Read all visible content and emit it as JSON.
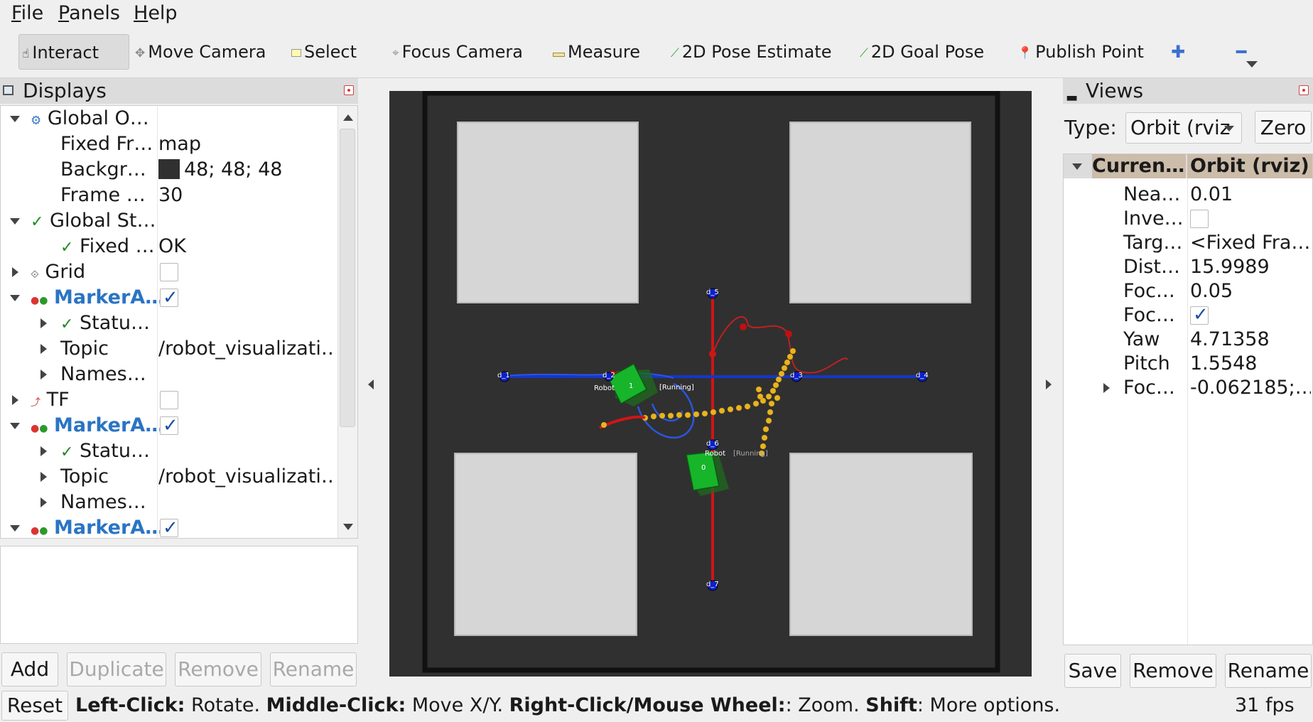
{
  "menu": {
    "file": "File",
    "file_ul": "F",
    "file_rest": "ile",
    "panels_ul": "P",
    "panels_rest": "anels",
    "help_ul": "H",
    "help_rest": "elp"
  },
  "toolbar": {
    "interact": "Interact",
    "move_camera": "Move Camera",
    "select": "Select",
    "focus_camera": "Focus Camera",
    "measure": "Measure",
    "pose_estimate": "2D Pose Estimate",
    "goal_pose": "2D Goal Pose",
    "publish_point": "Publish Point"
  },
  "displays": {
    "title": "Displays",
    "rows": {
      "global_options": "Global O…",
      "fixed_frame_label": "Fixed Fr…",
      "fixed_frame_value": "map",
      "background_label": "Backgr…",
      "background_value": "48; 48; 48",
      "frame_rate_label": "Frame …",
      "frame_rate_value": "30",
      "global_status": "Global St…",
      "fixed_status_label": "Fixed …",
      "fixed_status_value": "OK",
      "grid": "Grid",
      "marker_array_1": "MarkerA…",
      "status_1": "Statu…",
      "topic_1_label": "Topic",
      "topic_1_value": "/robot_visualizati…",
      "namespaces_1": "Names…",
      "tf": "TF",
      "marker_array_2": "MarkerA…",
      "status_2": "Statu…",
      "topic_2_label": "Topic",
      "topic_2_value": "/robot_visualizati…",
      "namespaces_2": "Names…",
      "marker_array_3": "MarkerA…"
    },
    "buttons": {
      "add": "Add",
      "duplicate": "Duplicate",
      "remove": "Remove",
      "rename": "Rename"
    }
  },
  "viewport": {
    "background_color": "#303030",
    "node_labels": [
      "d_1",
      "d_2",
      "d_3",
      "d_4",
      "d_5",
      "d_6",
      "d_7"
    ],
    "robots": [
      {
        "id": "1",
        "name": "Robot",
        "state": "[Running]"
      },
      {
        "id": "0",
        "name": "Robot",
        "state": "[Running]"
      }
    ]
  },
  "views": {
    "title": "Views",
    "type_label": "Type:",
    "type_value": "Orbit (rviz",
    "zero": "Zero",
    "header_key": "Curren…",
    "header_value": "Orbit (rviz)",
    "props": [
      {
        "k": "Nea…",
        "v": "0.01"
      },
      {
        "k": "Inve…",
        "v": ""
      },
      {
        "k": "Targ…",
        "v": "<Fixed Fra…"
      },
      {
        "k": "Dist…",
        "v": "15.9989"
      },
      {
        "k": "Foc…",
        "v": "0.05"
      },
      {
        "k": "Foc…",
        "v": ""
      },
      {
        "k": "Yaw",
        "v": "4.71358"
      },
      {
        "k": "Pitch",
        "v": "1.5548"
      },
      {
        "k": "Foc…",
        "v": "-0.062185;…"
      }
    ],
    "buttons": {
      "save": "Save",
      "remove": "Remove",
      "rename": "Rename"
    }
  },
  "status": {
    "reset": "Reset",
    "k1": "Left-Click:",
    "v1": " Rotate. ",
    "k2": "Middle-Click:",
    "v2": " Move X/Y. ",
    "k3": "Right-Click/Mouse Wheel:",
    "v3": ": Zoom. ",
    "k4": "Shift",
    "v4": ": More options.",
    "fps": "31 fps"
  }
}
